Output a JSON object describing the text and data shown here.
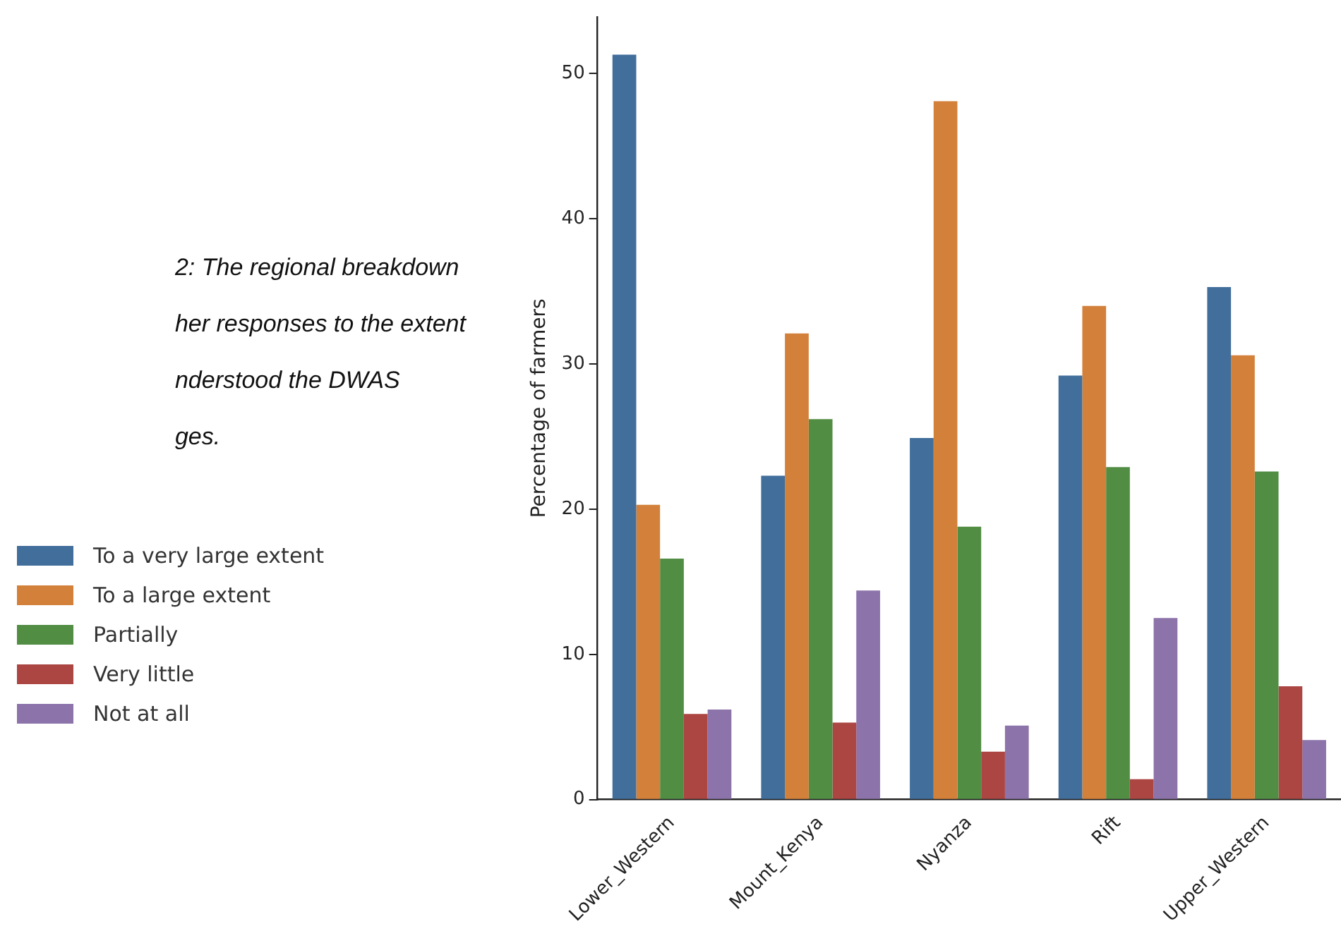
{
  "chart_data": {
    "type": "bar",
    "ylabel": "Percentage of farmers",
    "categories": [
      "Lower_Western",
      "Mount_Kenya",
      "Nyanza",
      "Rift",
      "Upper_Western"
    ],
    "series": [
      {
        "name": "To a very large extent",
        "color": "#416e9b",
        "values": [
          51.3,
          22.3,
          24.9,
          29.2,
          35.3
        ]
      },
      {
        "name": "To a large extent",
        "color": "#d3803b",
        "values": [
          20.3,
          32.1,
          48.1,
          34.0,
          30.6
        ]
      },
      {
        "name": "Partially",
        "color": "#528d44",
        "values": [
          16.6,
          26.2,
          18.8,
          22.9,
          22.6
        ]
      },
      {
        "name": "Very little",
        "color": "#ab4643",
        "values": [
          5.9,
          5.3,
          3.3,
          1.4,
          7.8
        ]
      },
      {
        "name": "Not at all",
        "color": "#8c73aa",
        "values": [
          6.2,
          14.4,
          5.1,
          12.5,
          4.1
        ]
      }
    ],
    "ylim": [
      0,
      53.9
    ],
    "yticks": [
      0,
      10,
      20,
      30,
      40,
      50
    ],
    "legend": "left",
    "annotations": [
      "2: The regional breakdown",
      "her responses to the extent",
      "nderstood the DWAS",
      "ges."
    ]
  }
}
